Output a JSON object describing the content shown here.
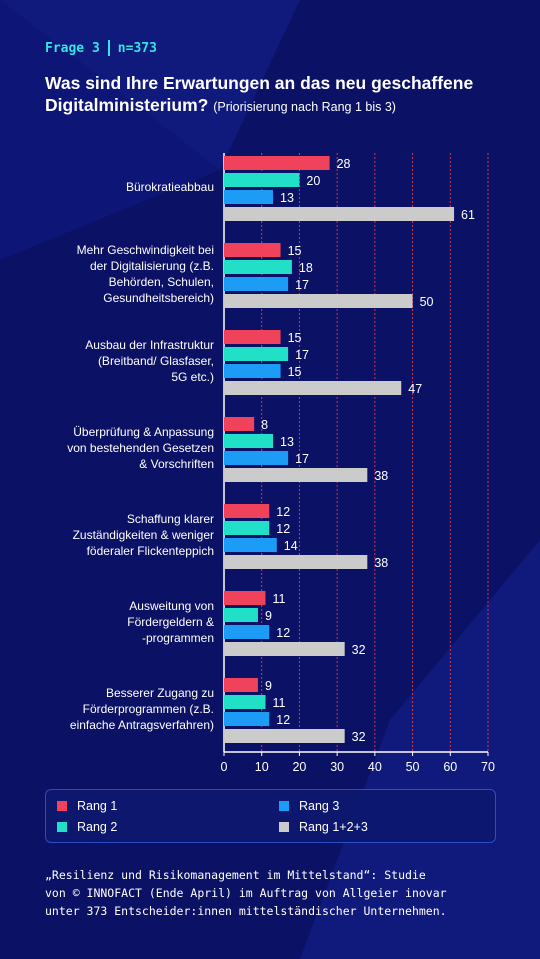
{
  "header": {
    "question": "Frage 3",
    "n": "n=373",
    "title": "Was sind Ihre Erwartungen an das neu geschaffene Digitalministerium?",
    "subtitle": "(Priorisierung nach Rang 1 bis 3)"
  },
  "colors": {
    "background": "#0b1164",
    "accent": "#33e6e0",
    "rang1": "#f0425a",
    "rang2": "#22e0c8",
    "rang3": "#1c9cf5",
    "rang_total": "#cbcbcb",
    "gridline": "#d23a4a"
  },
  "chart_data": {
    "type": "bar",
    "orientation": "horizontal",
    "categories": [
      "Bürokratieabbau",
      "Mehr Geschwindigkeit bei\nder Digitalisierung (z.B.\nBehörden, Schulen,\nGesundheitsbereich)",
      "Ausbau der Infrastruktur\n(Breitband/ Glasfaser,\n5G etc.)",
      "Überprüfung & Anpassung\nvon bestehenden Gesetzen\n& Vorschriften",
      "Schaffung klarer\nZuständigkeiten & weniger\nföderaler Flickenteppich",
      "Ausweitung von\nFördergeldern &\n-programmen",
      "Besserer Zugang zu\nFörderprogrammen (z.B.\neinfache Antragsverfahren)"
    ],
    "series": [
      {
        "name": "Rang 1",
        "color": "#f0425a",
        "values": [
          28,
          15,
          15,
          8,
          12,
          11,
          9
        ]
      },
      {
        "name": "Rang 2",
        "color": "#22e0c8",
        "values": [
          20,
          18,
          17,
          13,
          12,
          9,
          11
        ]
      },
      {
        "name": "Rang 3",
        "color": "#1c9cf5",
        "values": [
          13,
          17,
          15,
          17,
          14,
          12,
          12
        ]
      },
      {
        "name": "Rang 1+2+3",
        "color": "#cbcbcb",
        "values": [
          61,
          50,
          47,
          38,
          38,
          32,
          32
        ]
      }
    ],
    "xlim": [
      0,
      70
    ],
    "xticks": [
      "0",
      "10",
      "20",
      "30",
      "40",
      "50",
      "60",
      "70"
    ],
    "grid": true,
    "legend_position": "bottom",
    "data_labels": true
  },
  "legend": {
    "items": [
      "Rang 1",
      "Rang 2",
      "Rang 3",
      "Rang 1+2+3"
    ]
  },
  "footer": {
    "line1": "„Resilienz und Risikomanagement im Mittelstand“: Studie",
    "line2": "von © INNOFACT (Ende April) im Auftrag von Allgeier inovar",
    "line3": "unter 373 Entscheider:innen mittelständischer Unternehmen."
  }
}
